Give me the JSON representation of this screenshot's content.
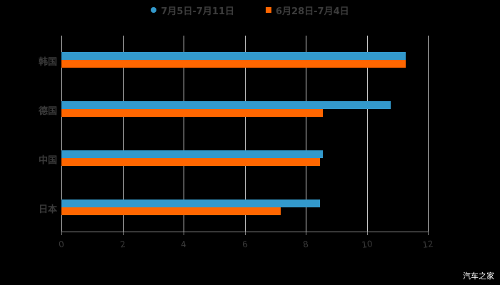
{
  "chart_data": {
    "type": "bar",
    "orientation": "horizontal",
    "categories": [
      "韩国",
      "德国",
      "中国",
      "日本"
    ],
    "series": [
      {
        "name": "7月5日-7月11日",
        "color": "#3399cc",
        "values": [
          11.27,
          10.78,
          8.56,
          8.47
        ]
      },
      {
        "name": "6月28日-7月4日",
        "color": "#ff6600",
        "values": [
          11.27,
          8.56,
          8.47,
          7.18
        ]
      }
    ],
    "xlim": [
      0,
      12
    ],
    "xticks": [
      "0",
      "2",
      "4",
      "6",
      "8",
      "10",
      "12"
    ],
    "grid": true,
    "legend_position": "top"
  },
  "legend": [
    {
      "label": "7月5日-7月11日",
      "color": "#3399cc"
    },
    {
      "label": "6月28日-7月4日",
      "color": "#ff6600"
    }
  ],
  "watermark": "汽车之家"
}
